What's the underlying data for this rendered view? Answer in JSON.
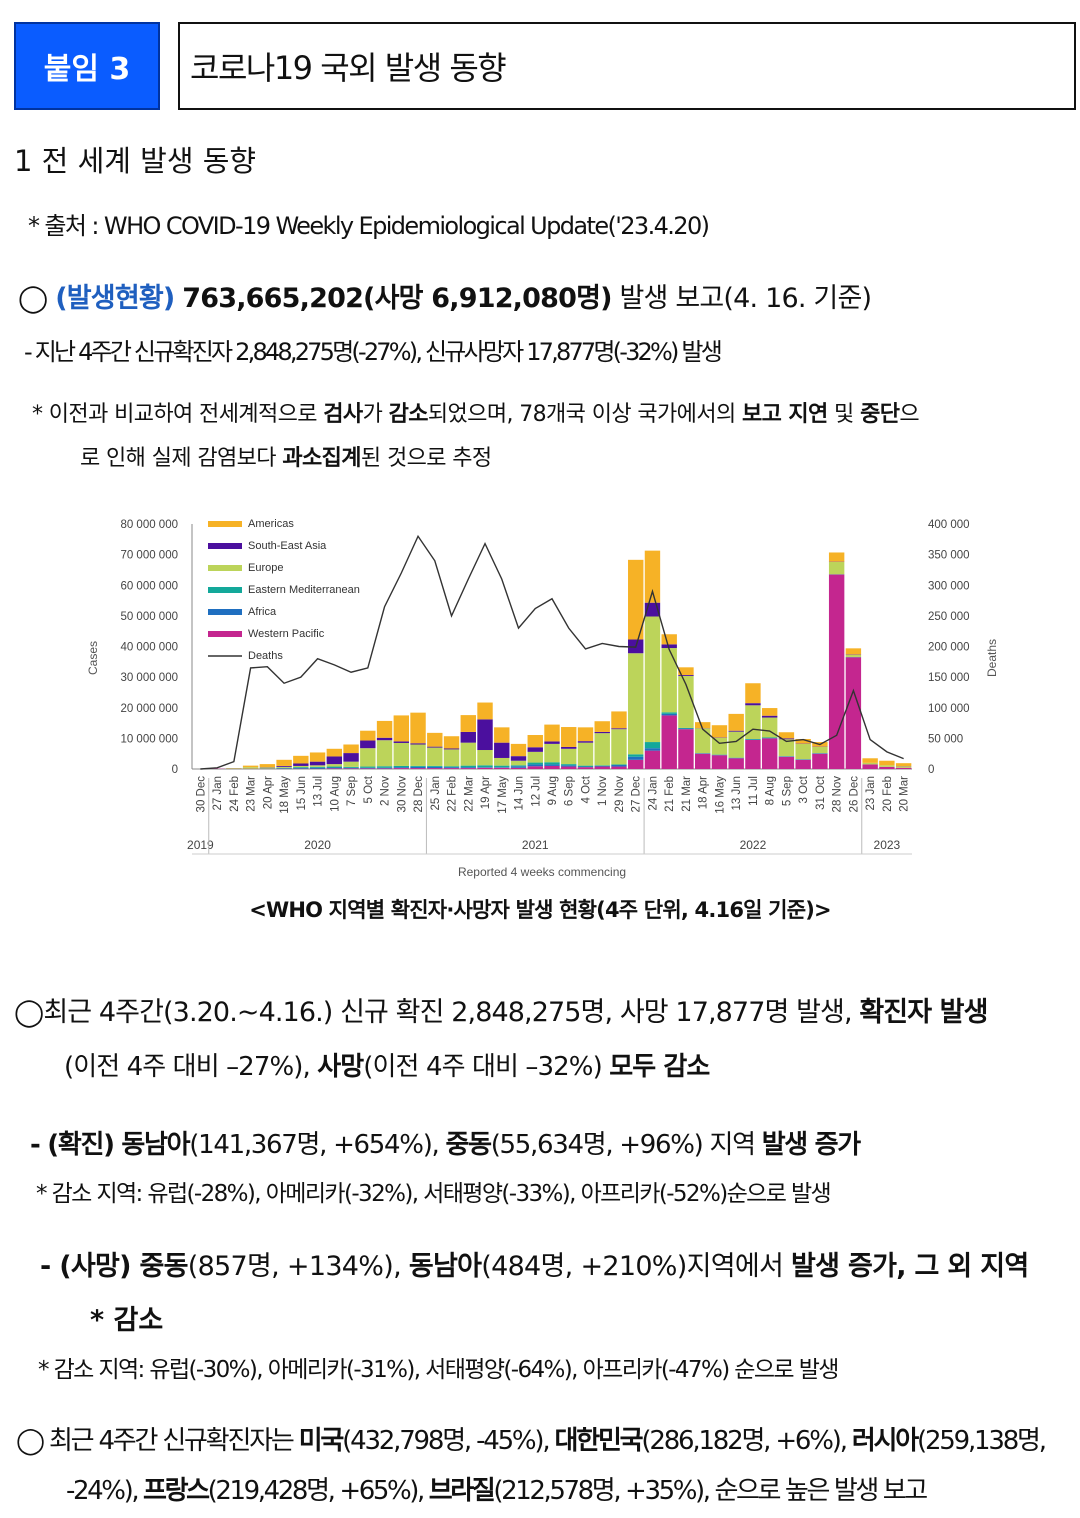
{
  "header": {
    "badge": "붙임 3",
    "title": "코로나19 국외 발생 동향"
  },
  "section": {
    "title": "1  전 세계 발생 동향",
    "source": "* 출처 : WHO COVID-19 Weekly Epidemiological Update('23.4.20)"
  },
  "summary": {
    "circle": "◯",
    "label": "(발생현황)",
    "total": "763,665,202(사망 6,912,080명)",
    "tail": " 발생 보고(4. 16. 기준)",
    "recent": "- 지난 4주간 신규확진자 2,848,275명(-27%), 신규사망자 17,877명(-32%) 발생",
    "note_a": "* 이전과 비교하여 전세계적으로 ",
    "note_b": "검사",
    "note_c": "가 ",
    "note_d": "감소",
    "note_e": "되었으며, 78개국 이상 국가에서의 ",
    "note_f": "보고 지연",
    "note_g": " 및 ",
    "note_h": "중단",
    "note_i": "으",
    "note2_a": "로 인해 실제 감염보다 ",
    "note2_b": "과소집계",
    "note2_c": "된 것으로 추정"
  },
  "chart_data": {
    "type": "bar",
    "stacked": true,
    "x_title": "Reported 4 weeks commencing",
    "y_left_label": "Cases",
    "y_right_label": "Deaths",
    "y_left_ticks": [
      "0",
      "10 000 000",
      "20 000 000",
      "30 000 000",
      "40 000 000",
      "50 000 000",
      "60 000 000",
      "70 000 000",
      "80 000 000"
    ],
    "y_right_ticks": [
      "0",
      "50 000",
      "100 000",
      "150 000",
      "200 000",
      "250 000",
      "300 000",
      "350 000",
      "400 000"
    ],
    "ylim": [
      0,
      80000000
    ],
    "y2lim": [
      0,
      400000
    ],
    "years": [
      "2019",
      "2020",
      "2021",
      "2022",
      "2023"
    ],
    "categories": [
      "30 Dec",
      "27 Jan",
      "24 Feb",
      "23 Mar",
      "20 Apr",
      "18 May",
      "15 Jun",
      "13 Jul",
      "10 Aug",
      "7 Sep",
      "5 Oct",
      "2 Nov",
      "30 Nov",
      "28 Dec",
      "25 Jan",
      "22 Feb",
      "22 Mar",
      "19 Apr",
      "17 May",
      "14 Jun",
      "12 Jul",
      "9 Aug",
      "6 Sep",
      "4 Oct",
      "1 Nov",
      "29 Nov",
      "27 Dec",
      "24 Jan",
      "21 Feb",
      "21 Mar",
      "18 Apr",
      "16 May",
      "13 Jun",
      "11 Jul",
      "8 Aug",
      "5 Sep",
      "3 Oct",
      "31 Oct",
      "28 Nov",
      "26 Dec",
      "23 Jan",
      "20 Feb",
      "20 Mar"
    ],
    "series_colors": {
      "Western Pacific": "#c4268f",
      "Africa": "#1f6fc0",
      "Eastern Mediterranean": "#13a89a",
      "Europe": "#bcd45a",
      "South-East Asia": "#4b0f9e",
      "Americas": "#f6b226",
      "Deaths": "#333333"
    },
    "legend_position": "top-left",
    "series": [
      {
        "name": "Western Pacific",
        "values": [
          0,
          0.1,
          0.1,
          0.1,
          0.1,
          0.1,
          0.1,
          0.1,
          0.2,
          0.2,
          0.2,
          0.2,
          0.3,
          0.3,
          0.3,
          0.3,
          0.3,
          0.4,
          0.4,
          0.4,
          0.9,
          1,
          0.8,
          0.6,
          0.8,
          0.8,
          3,
          6,
          17.5,
          13,
          5,
          4.5,
          3.5,
          9.5,
          10,
          4,
          3,
          5,
          63.5,
          36.5,
          1.5,
          0.7,
          0.4
        ]
      },
      {
        "name": "Africa",
        "values": [
          0,
          0,
          0,
          0,
          0,
          0.1,
          0.2,
          0.3,
          0.3,
          0.2,
          0.2,
          0.2,
          0.3,
          0.4,
          0.4,
          0.3,
          0.3,
          0.2,
          0.2,
          0.5,
          0.6,
          0.5,
          0.4,
          0.2,
          0.2,
          0.5,
          1,
          0.8,
          0.5,
          0.2,
          0.1,
          0.1,
          0.1,
          0.1,
          0.1,
          0.1,
          0.1,
          0.1,
          0,
          0,
          0,
          0,
          0
        ]
      },
      {
        "name": "Eastern Mediterranean",
        "values": [
          0,
          0,
          0,
          0,
          0.1,
          0.2,
          0.3,
          0.3,
          0.3,
          0.3,
          0.4,
          0.5,
          0.4,
          0.3,
          0.3,
          0.3,
          0.5,
          0.6,
          0.5,
          0.3,
          0.6,
          0.7,
          0.4,
          0.3,
          0.2,
          0.2,
          0.8,
          2,
          0.5,
          0.2,
          0.1,
          0.1,
          0.1,
          0.2,
          0.2,
          0.1,
          0.1,
          0.1,
          0.1,
          0.1,
          0,
          0,
          0
        ]
      },
      {
        "name": "Europe",
        "values": [
          0,
          0,
          0.2,
          0.5,
          0.3,
          0.3,
          0.4,
          0.5,
          0.8,
          1.7,
          6,
          8.5,
          7.5,
          7,
          6,
          5.5,
          7.5,
          5,
          2.5,
          1.5,
          3.5,
          6,
          5,
          7.5,
          10.5,
          11.5,
          33,
          41,
          21,
          17,
          8,
          5.5,
          8.5,
          11,
          6.5,
          5.5,
          5,
          2,
          4,
          0.7,
          0.5,
          0.5,
          0.4
        ]
      },
      {
        "name": "South-East Asia",
        "values": [
          0,
          0,
          0,
          0,
          0.1,
          0.3,
          0.8,
          1.2,
          2.5,
          2.8,
          2.5,
          0.8,
          0.5,
          0.4,
          0.3,
          0.3,
          3.5,
          10,
          5,
          1.5,
          1.5,
          0.8,
          0.6,
          0.5,
          0.4,
          0.3,
          4.5,
          4.5,
          1.2,
          0.3,
          0.1,
          0.1,
          0.3,
          0.7,
          0.6,
          0.3,
          0.1,
          0.1,
          0.1,
          0.1,
          0,
          0,
          0.1
        ]
      },
      {
        "name": "Americas",
        "values": [
          0,
          0,
          0,
          0.5,
          1,
          2,
          2.5,
          3,
          2.5,
          2.8,
          3.2,
          5.5,
          8.5,
          10,
          4.5,
          4,
          5.5,
          5.5,
          5,
          4,
          4,
          5.5,
          6.5,
          4.5,
          3.5,
          5.5,
          26,
          17,
          3.3,
          2.5,
          2,
          4,
          5.5,
          6.5,
          2.5,
          2,
          1.5,
          1.5,
          3,
          2,
          1.5,
          1.5,
          1
        ]
      },
      {
        "name": "Deaths",
        "type": "line",
        "values": [
          0,
          2000,
          12000,
          165000,
          167000,
          140000,
          150000,
          180000,
          170000,
          158000,
          165000,
          265000,
          320000,
          380000,
          340000,
          250000,
          310000,
          368000,
          310000,
          230000,
          262000,
          278000,
          230000,
          196000,
          205000,
          200000,
          199000,
          290000,
          195000,
          138000,
          65000,
          42000,
          45000,
          65000,
          62000,
          45000,
          48000,
          40000,
          55000,
          128000,
          48000,
          28000,
          17000
        ]
      }
    ]
  },
  "caption": "<WHO 지역별 확진자·사망자 발생 현황(4주 단위, 4.16일 기준)>",
  "recent": {
    "p1_a": "◯최근 4주간(3.20.~4.16.) 신규 확진 2,848,275명, 사망 17,877명 발생, ",
    "p1_b": "확진자 발생",
    "p2_a": "(이전 4주 대비 –27%), ",
    "p2_b": "사망",
    "p2_c": "(이전 4주 대비 –32%) ",
    "p2_d": "모두 감소",
    "conf_a": "- (확진) 동남아",
    "conf_b": "(141,367명, +654%), ",
    "conf_c": "중동",
    "conf_d": "(55,634명, +96%) 지역 ",
    "conf_e": "발생 증가",
    "conf_note": "* 감소 지역: 유럽(-28%), 아메리카(-32%), 서태평양(-33%), 아프리카(-52%)순으로 발생",
    "death_a": "- (사망) 중동",
    "death_b": "(857명, +134%), ",
    "death_c": "동남아",
    "death_d": "(484명, +210%)지역에서 ",
    "death_e": "발생 증가, 그 외 지역",
    "death_f": "* 감소",
    "death_note": "* 감소 지역: 유럽(-30%), 아메리카(-31%), 서태평양(-64%), 아프리카(-47%) 순으로 발생",
    "country_a": "◯ 최근 4주간 신규확진자는 ",
    "country_b": "미국",
    "country_c": "(432,798명, -45%), ",
    "country_d": "대한민국",
    "country_e": "(286,182명, +6%), ",
    "country_f": "러시아",
    "country_g": "(259,138명,",
    "country2_a": "-24%), ",
    "country2_b": "프랑스",
    "country2_c": "(219,428명, +65%), ",
    "country2_d": "브라질",
    "country2_e": "(212,578명, +35%), 순으로 높은 발생 보고"
  }
}
